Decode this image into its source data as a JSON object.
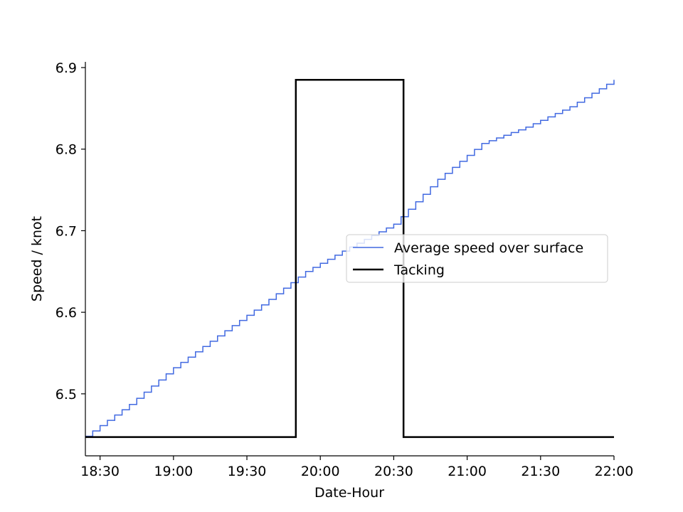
{
  "chart_data": {
    "type": "line",
    "title": "",
    "xlabel": "Date-Hour",
    "ylabel": "Speed / knot",
    "xlim": [
      "18:24",
      "22:00"
    ],
    "ylim": [
      6.424,
      6.907
    ],
    "x_ticks": [
      "18:30",
      "19:00",
      "19:30",
      "20:00",
      "20:30",
      "21:00",
      "21:30",
      "22:00"
    ],
    "y_ticks": [
      6.5,
      6.6,
      6.7,
      6.8,
      6.9
    ],
    "grid": false,
    "legend_position": "center-right",
    "series": [
      {
        "name": "Average speed over surface",
        "color": "#4169e1",
        "style": "step",
        "x": [
          "18:24",
          "18:42",
          "19:00",
          "19:18",
          "19:36",
          "19:54",
          "20:12",
          "20:30",
          "20:48",
          "21:06",
          "21:24",
          "21:42",
          "22:00"
        ],
        "values": [
          6.448,
          6.487,
          6.532,
          6.571,
          6.609,
          6.65,
          6.68,
          6.708,
          6.763,
          6.807,
          6.827,
          6.852,
          6.885
        ]
      },
      {
        "name": "Tacking",
        "color": "#000000",
        "style": "step",
        "x": [
          "18:24",
          "19:50",
          "19:50",
          "20:34",
          "20:34",
          "22:00"
        ],
        "values": [
          6.447,
          6.447,
          6.885,
          6.885,
          6.447,
          6.447
        ]
      }
    ]
  }
}
